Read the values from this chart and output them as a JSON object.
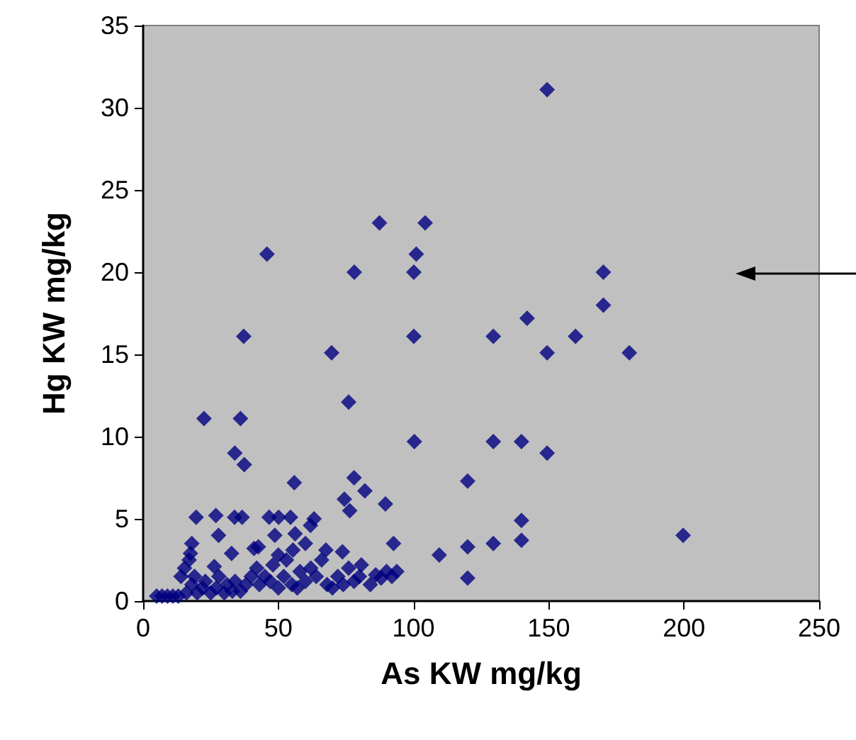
{
  "chart_data": {
    "type": "scatter",
    "xlabel": "As KW mg/kg",
    "ylabel": "Hg KW mg/kg",
    "xlim": [
      0,
      250
    ],
    "xticks": [
      0,
      50,
      100,
      150,
      200,
      250
    ],
    "ylim": [
      0,
      35
    ],
    "yticks": [
      0,
      5,
      10,
      15,
      20,
      25,
      30,
      35
    ],
    "grid": false,
    "marker": "diamond",
    "series": [
      {
        "color": "#000080",
        "x": [
          149.4,
          87.4,
          104.3,
          45.8,
          101,
          78.1,
          100.1,
          170.2,
          170.2,
          142,
          37.2,
          100.1,
          129.5,
          159.9,
          69.7,
          149.4,
          179.8,
          76,
          22.5,
          36,
          33.9,
          37.4,
          55.9,
          78,
          82,
          74.4,
          76.4,
          89.6,
          92.6,
          19.6,
          26.9,
          33.8,
          36.6,
          46.6,
          50.1,
          54.5,
          63.2,
          61.9,
          27.9,
          48.7,
          56.2,
          32.7,
          42.6,
          55.4,
          67.6,
          73.7,
          80.7,
          17.5,
          26.3,
          15.3,
          100.3,
          129.5,
          139.9,
          149.4,
          120,
          139.9,
          139.9,
          129.5,
          120,
          109.5,
          120,
          199.7,
          93.8,
          5,
          7,
          9,
          11,
          13,
          16,
          18,
          19,
          20,
          22,
          23,
          25,
          27,
          28,
          30,
          31,
          33,
          34,
          36,
          38,
          40,
          42,
          43,
          45,
          47,
          48,
          50,
          52,
          53,
          55,
          57,
          58,
          60,
          62,
          64,
          66,
          68,
          70,
          72,
          74,
          76,
          78,
          80,
          84,
          86,
          88,
          90,
          92,
          17,
          18,
          14,
          41,
          60,
          50
        ],
        "values": [
          31.1,
          23,
          23,
          21.1,
          21.1,
          20,
          20,
          20,
          18,
          17.2,
          16.1,
          16.1,
          16.1,
          16.1,
          15.1,
          15.1,
          15.1,
          12.1,
          11.1,
          11.1,
          9,
          8.3,
          7.2,
          7.5,
          6.7,
          6.2,
          5.5,
          5.9,
          3.5,
          5.1,
          5.2,
          5.1,
          5.1,
          5.1,
          5.1,
          5.1,
          5,
          4.6,
          4,
          4,
          4.1,
          2.9,
          3.3,
          3.1,
          3.1,
          3,
          2.2,
          2.9,
          2.1,
          2,
          9.7,
          9.7,
          9.7,
          9,
          7.3,
          4.9,
          3.7,
          3.5,
          3.3,
          2.8,
          1.4,
          4,
          1.8,
          0.3,
          0.3,
          0.3,
          0.3,
          0.3,
          0.5,
          1,
          1.5,
          0.5,
          0.8,
          1.2,
          0.5,
          0.8,
          1.5,
          0.5,
          1,
          0.6,
          1.2,
          0.6,
          1,
          1.5,
          2,
          1,
          1.5,
          1.2,
          2.2,
          0.8,
          1.5,
          2.5,
          1,
          0.8,
          1.8,
          1.2,
          2,
          1.5,
          2.5,
          1,
          0.8,
          1.5,
          1,
          2,
          1.2,
          1.5,
          1,
          1.6,
          1.4,
          1.8,
          1.5,
          2.5,
          3.5,
          1.5,
          3.2,
          3.5,
          2.8
        ]
      }
    ]
  }
}
